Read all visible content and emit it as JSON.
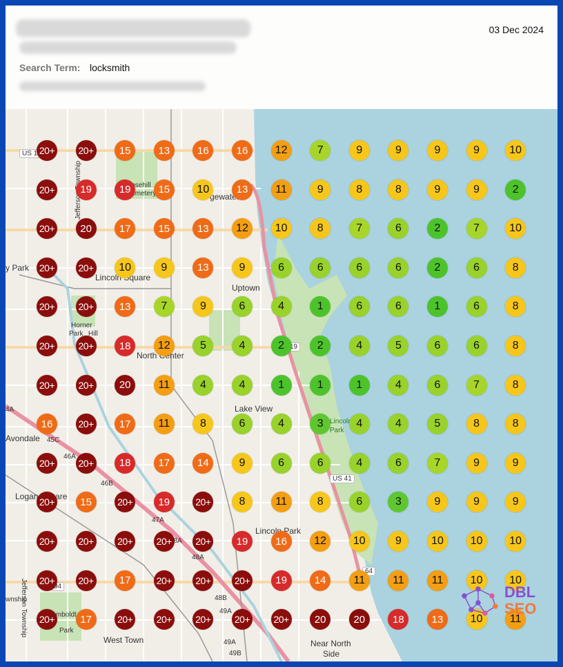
{
  "header": {
    "date": "03 Dec 2024",
    "search_label": "Search Term:",
    "search_term": "locksmith"
  },
  "map": {
    "labels": {
      "uptown": "Uptown",
      "lake_view": "Lake View",
      "lincoln_park": "Lincoln Park",
      "logan_square": "Logan Square",
      "avondale": "Avondale",
      "west_town": "West Town",
      "near_north": "Near North",
      "side": "Side",
      "horner_park": "Horner",
      "horner_park2": "Park",
      "park_hill": "Hill",
      "rosehill": "Rosehill",
      "cemetery": "Cemetery",
      "jefferson": "Jefferson Township",
      "jefferson2": "Jefferson Township",
      "lincoln_square": "Lincoln Square",
      "north_center": "North Center",
      "irving_park": "y Park",
      "township": "wnship",
      "humboldt": "Humboldt",
      "park_small": "Park",
      "edgewater": "gewater",
      "lincoln_park_small": "Lincoln",
      "lincoln_park_small2": "Park"
    },
    "shields": {
      "us14": "US 1",
      "us41": "US 41",
      "r19": "19",
      "r64": "64",
      "r94": "94",
      "r45c": "45C",
      "r46a": "46A",
      "r46b": "46B",
      "r47a": "47A",
      "r48a": "48A",
      "r48b": "48B",
      "r49a": "49A",
      "r49a2": "49A",
      "r49b": "49B",
      "r48a2": "48A",
      "r4a": "4A"
    }
  },
  "grid": {
    "rows": [
      [
        "20+",
        "20+",
        "15",
        "13",
        "16",
        "16",
        "12",
        "7",
        "9",
        "9",
        "9",
        "9",
        "10"
      ],
      [
        "20+",
        "19",
        "19",
        "15",
        "10",
        "13",
        "11",
        "9",
        "8",
        "8",
        "9",
        "9",
        "2"
      ],
      [
        "20+",
        "20",
        "17",
        "15",
        "13",
        "12",
        "10",
        "8",
        "7",
        "6",
        "2",
        "7",
        "10"
      ],
      [
        "20+",
        "20+",
        "10",
        "9",
        "13",
        "9",
        "6",
        "6",
        "6",
        "6",
        "2",
        "6",
        "8"
      ],
      [
        "20+",
        "20+",
        "13",
        "7",
        "9",
        "6",
        "4",
        "1",
        "6",
        "6",
        "1",
        "6",
        "8"
      ],
      [
        "20+",
        "20+",
        "18",
        "12",
        "5",
        "4",
        "2",
        "2",
        "4",
        "5",
        "6",
        "6",
        "8"
      ],
      [
        "20+",
        "20+",
        "20",
        "11",
        "4",
        "4",
        "1",
        "1",
        "1",
        "4",
        "6",
        "7",
        "8"
      ],
      [
        "16",
        "20+",
        "17",
        "11",
        "8",
        "6",
        "4",
        "3",
        "4",
        "4",
        "5",
        "8",
        "8"
      ],
      [
        "20+",
        "20+",
        "18",
        "17",
        "14",
        "9",
        "6",
        "6",
        "4",
        "6",
        "7",
        "9",
        "9"
      ],
      [
        "20+",
        "15",
        "20+",
        "19",
        "20+",
        "8",
        "11",
        "8",
        "6",
        "3",
        "9",
        "9",
        "9"
      ],
      [
        "20+",
        "20+",
        "20+",
        "20+",
        "20+",
        "19",
        "16",
        "12",
        "10",
        "9",
        "10",
        "10",
        "10"
      ],
      [
        "20+",
        "20+",
        "17",
        "20+",
        "20+",
        "20+",
        "19",
        "14",
        "11",
        "11",
        "11",
        "10",
        "10"
      ],
      [
        "20+",
        "17",
        "20+",
        "20+",
        "20+",
        "20+",
        "20+",
        "20",
        "20",
        "18",
        "13",
        "10",
        "11"
      ]
    ]
  },
  "colors": {
    "rank_1_2": "#4dc32b",
    "rank_3": "#5ec72f",
    "rank_4_6": "#98d22b",
    "rank_7": "#a8d52a",
    "rank_8_10": "#f6c61b",
    "rank_11_12": "#f39e13",
    "rank_13_17": "#ef6b17",
    "rank_18_19": "#d72a2a",
    "rank_20": "#8b0e0c",
    "water": "#aad3df",
    "park": "#c8e3b6"
  },
  "logo": {
    "line1": "DBL",
    "line2": "SEO"
  }
}
